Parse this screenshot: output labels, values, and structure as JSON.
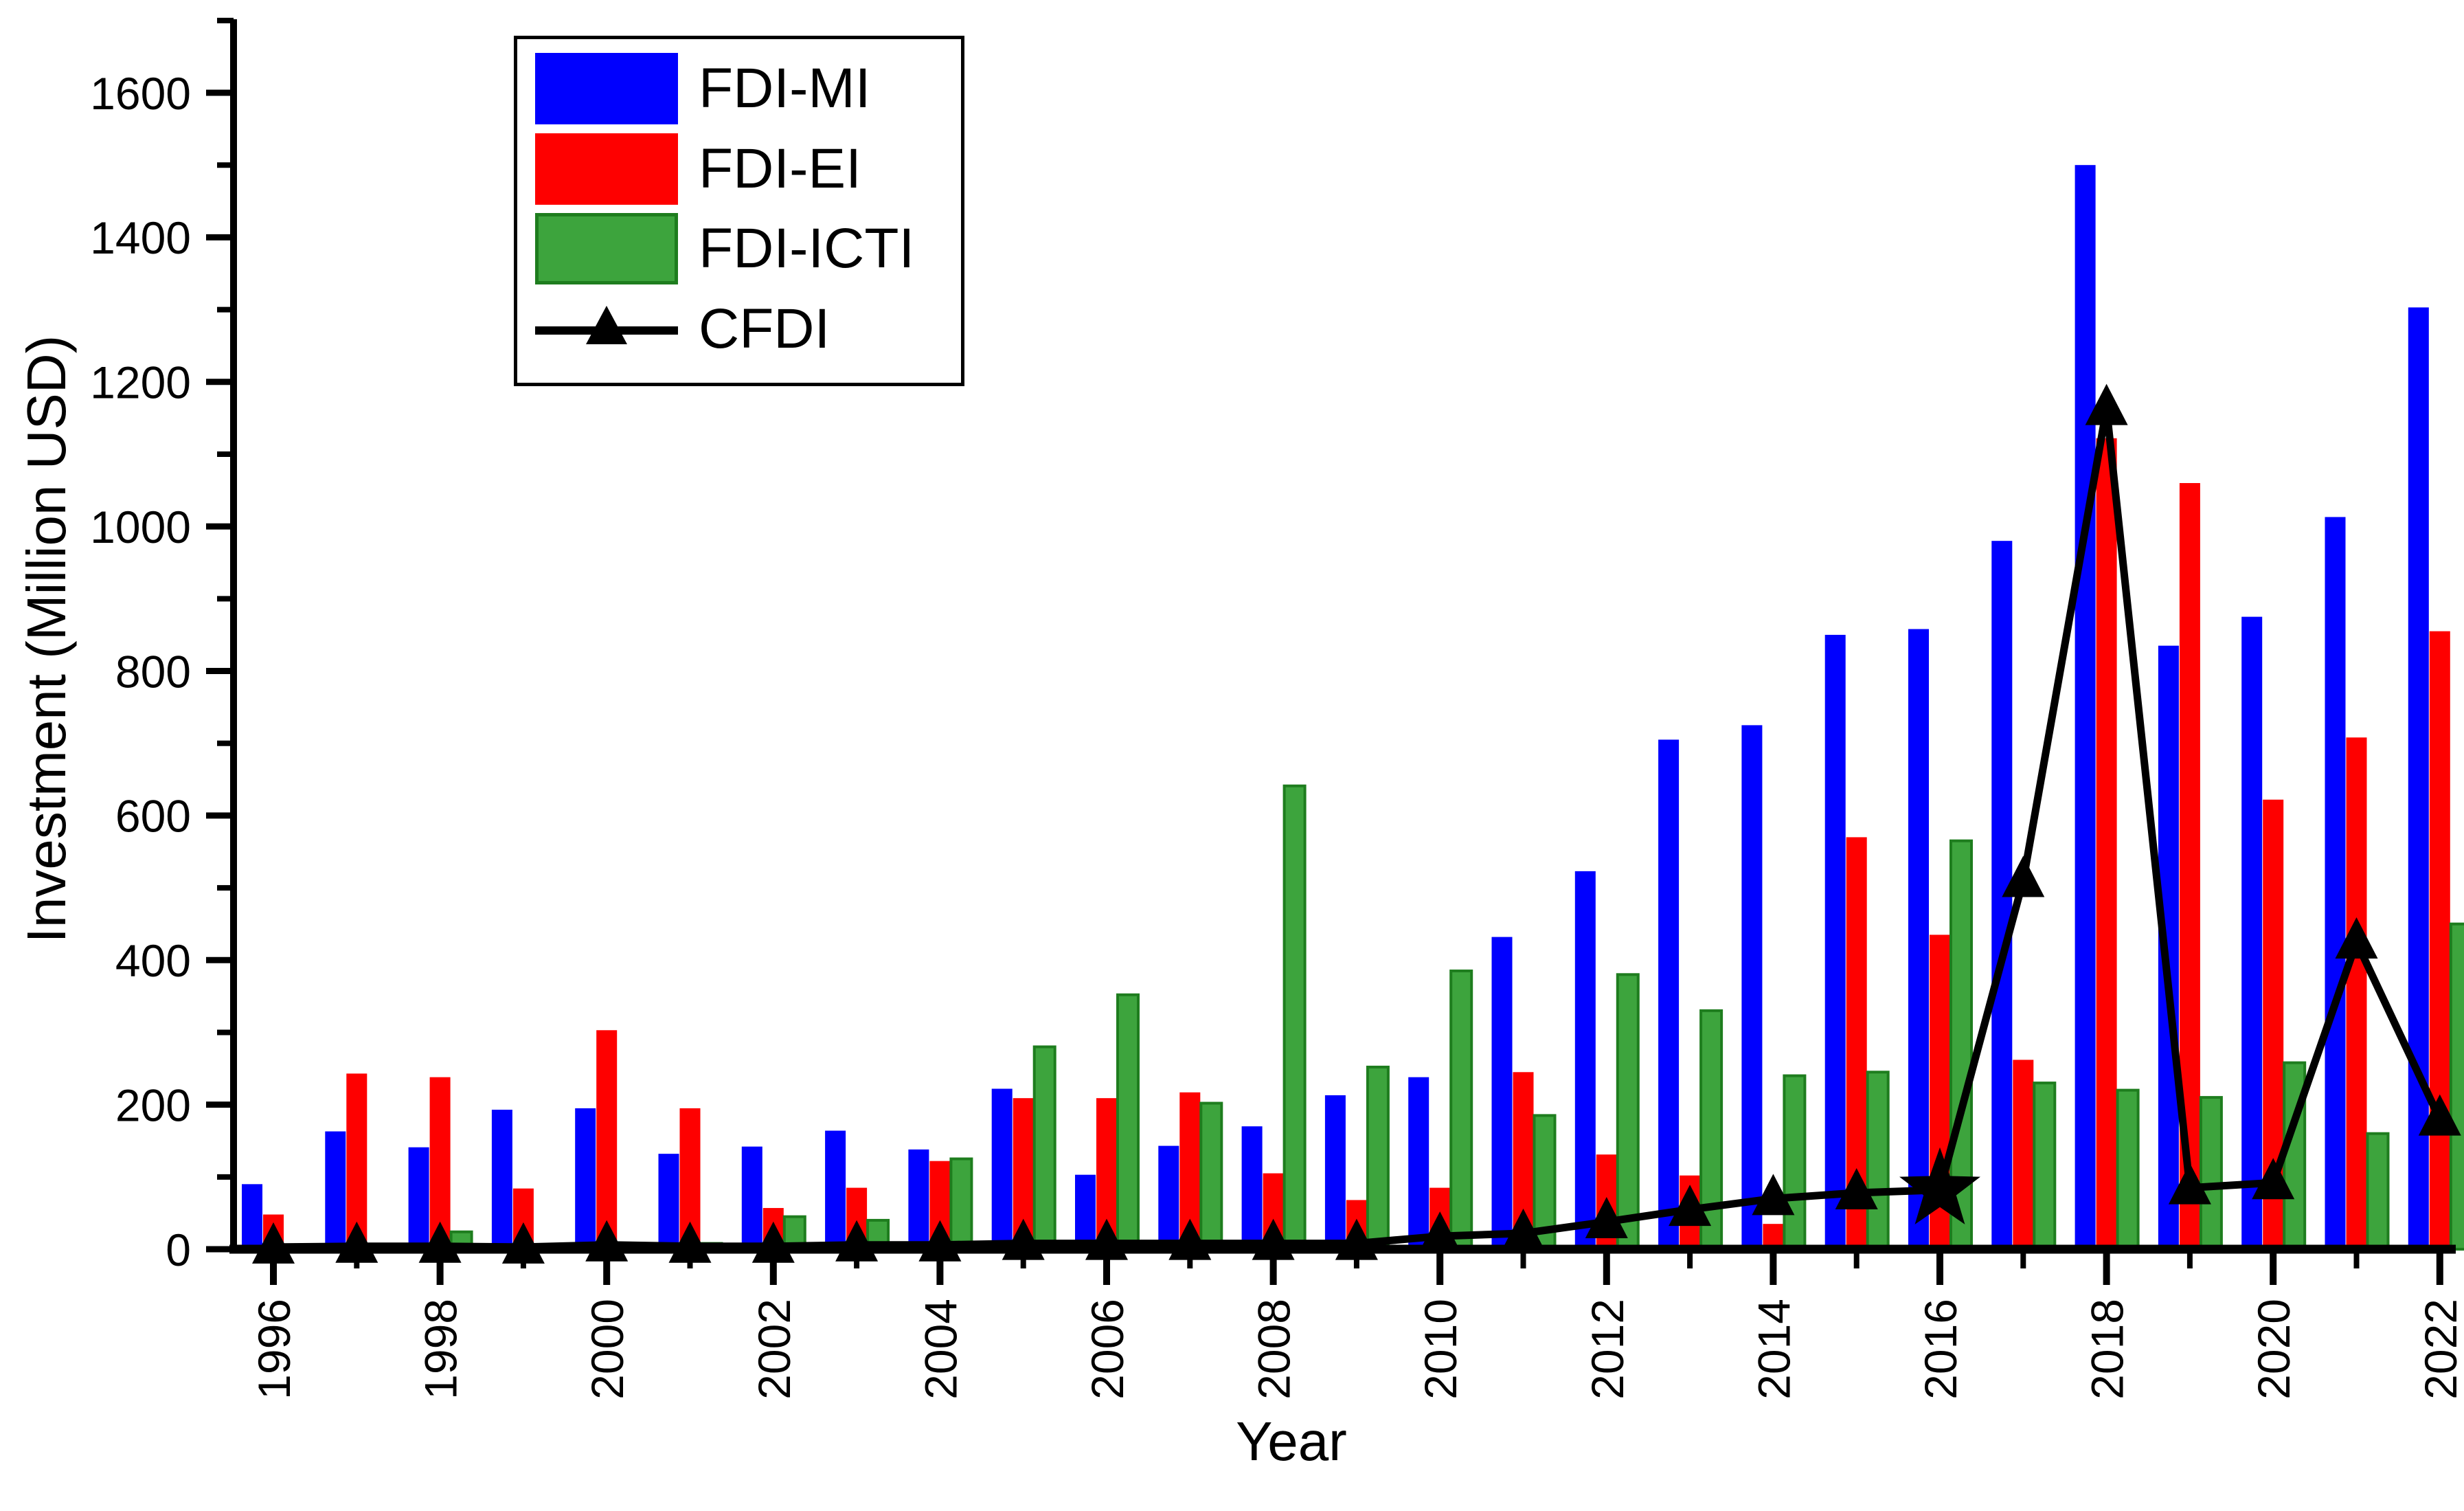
{
  "chart_data": {
    "type": "bar+line",
    "title": "",
    "xlabel": "Year",
    "ylabel": "Investment (Million USD)",
    "ylim": [
      0,
      1700
    ],
    "y_major_ticks": [
      0,
      200,
      400,
      600,
      800,
      1000,
      1200,
      1400,
      1600
    ],
    "y_minor_ticks": [
      100,
      300,
      500,
      700,
      900,
      1100,
      1300,
      1500,
      1700
    ],
    "x_labeled_years": [
      "1996",
      "1998",
      "2000",
      "2002",
      "2004",
      "2006",
      "2008",
      "2010",
      "2012",
      "2014",
      "2016",
      "2018",
      "2020",
      "2022"
    ],
    "grid": false,
    "legend_position": "upper-left-inside",
    "categories": [
      1996,
      1997,
      1998,
      1999,
      2000,
      2001,
      2002,
      2003,
      2004,
      2005,
      2006,
      2007,
      2008,
      2009,
      2010,
      2011,
      2012,
      2013,
      2014,
      2015,
      2016,
      2017,
      2018,
      2019,
      2020,
      2021,
      2022
    ],
    "series": [
      {
        "name": "FDI-MI",
        "type": "bar",
        "color": "#0000fe",
        "values": [
          90,
          163,
          141,
          193,
          195,
          132,
          142,
          164,
          138,
          222,
          103,
          143,
          170,
          213,
          238,
          432,
          523,
          705,
          725,
          850,
          858,
          980,
          1500,
          835,
          875,
          1013,
          1303
        ]
      },
      {
        "name": "FDI-EI",
        "type": "bar",
        "color": "#fe0000",
        "values": [
          48,
          243,
          238,
          84,
          303,
          195,
          57,
          85,
          122,
          209,
          209,
          217,
          105,
          68,
          85,
          245,
          131,
          102,
          35,
          570,
          435,
          262,
          1122,
          1060,
          622,
          708,
          855
        ]
      },
      {
        "name": "FDI-ICTI",
        "type": "bar",
        "color": "#3da43d",
        "edge_color": "#1e7d1e",
        "values": [
          5,
          5,
          24,
          2,
          8,
          8,
          45,
          40,
          125,
          280,
          352,
          202,
          641,
          252,
          385,
          185,
          380,
          330,
          240,
          245,
          565,
          230,
          220,
          210,
          258,
          160,
          450
        ]
      },
      {
        "name": "CFDI",
        "type": "line",
        "color": "#000000",
        "marker": "triangle-up",
        "special_marker": {
          "year": 2016,
          "shape": "star"
        },
        "values": [
          3,
          4,
          4,
          3,
          6,
          4,
          4,
          6,
          6,
          8,
          8,
          8,
          8,
          8,
          18,
          22,
          38,
          55,
          70,
          78,
          82,
          510,
          1163,
          85,
          92,
          425,
          180
        ]
      }
    ],
    "legend": [
      {
        "label": "FDI-MI",
        "color": "#0000fe"
      },
      {
        "label": "FDI-EI",
        "color": "#fe0000"
      },
      {
        "label": "FDI-ICTI",
        "color": "#3da43d"
      },
      {
        "label": "CFDI",
        "color": "#000000"
      }
    ]
  }
}
